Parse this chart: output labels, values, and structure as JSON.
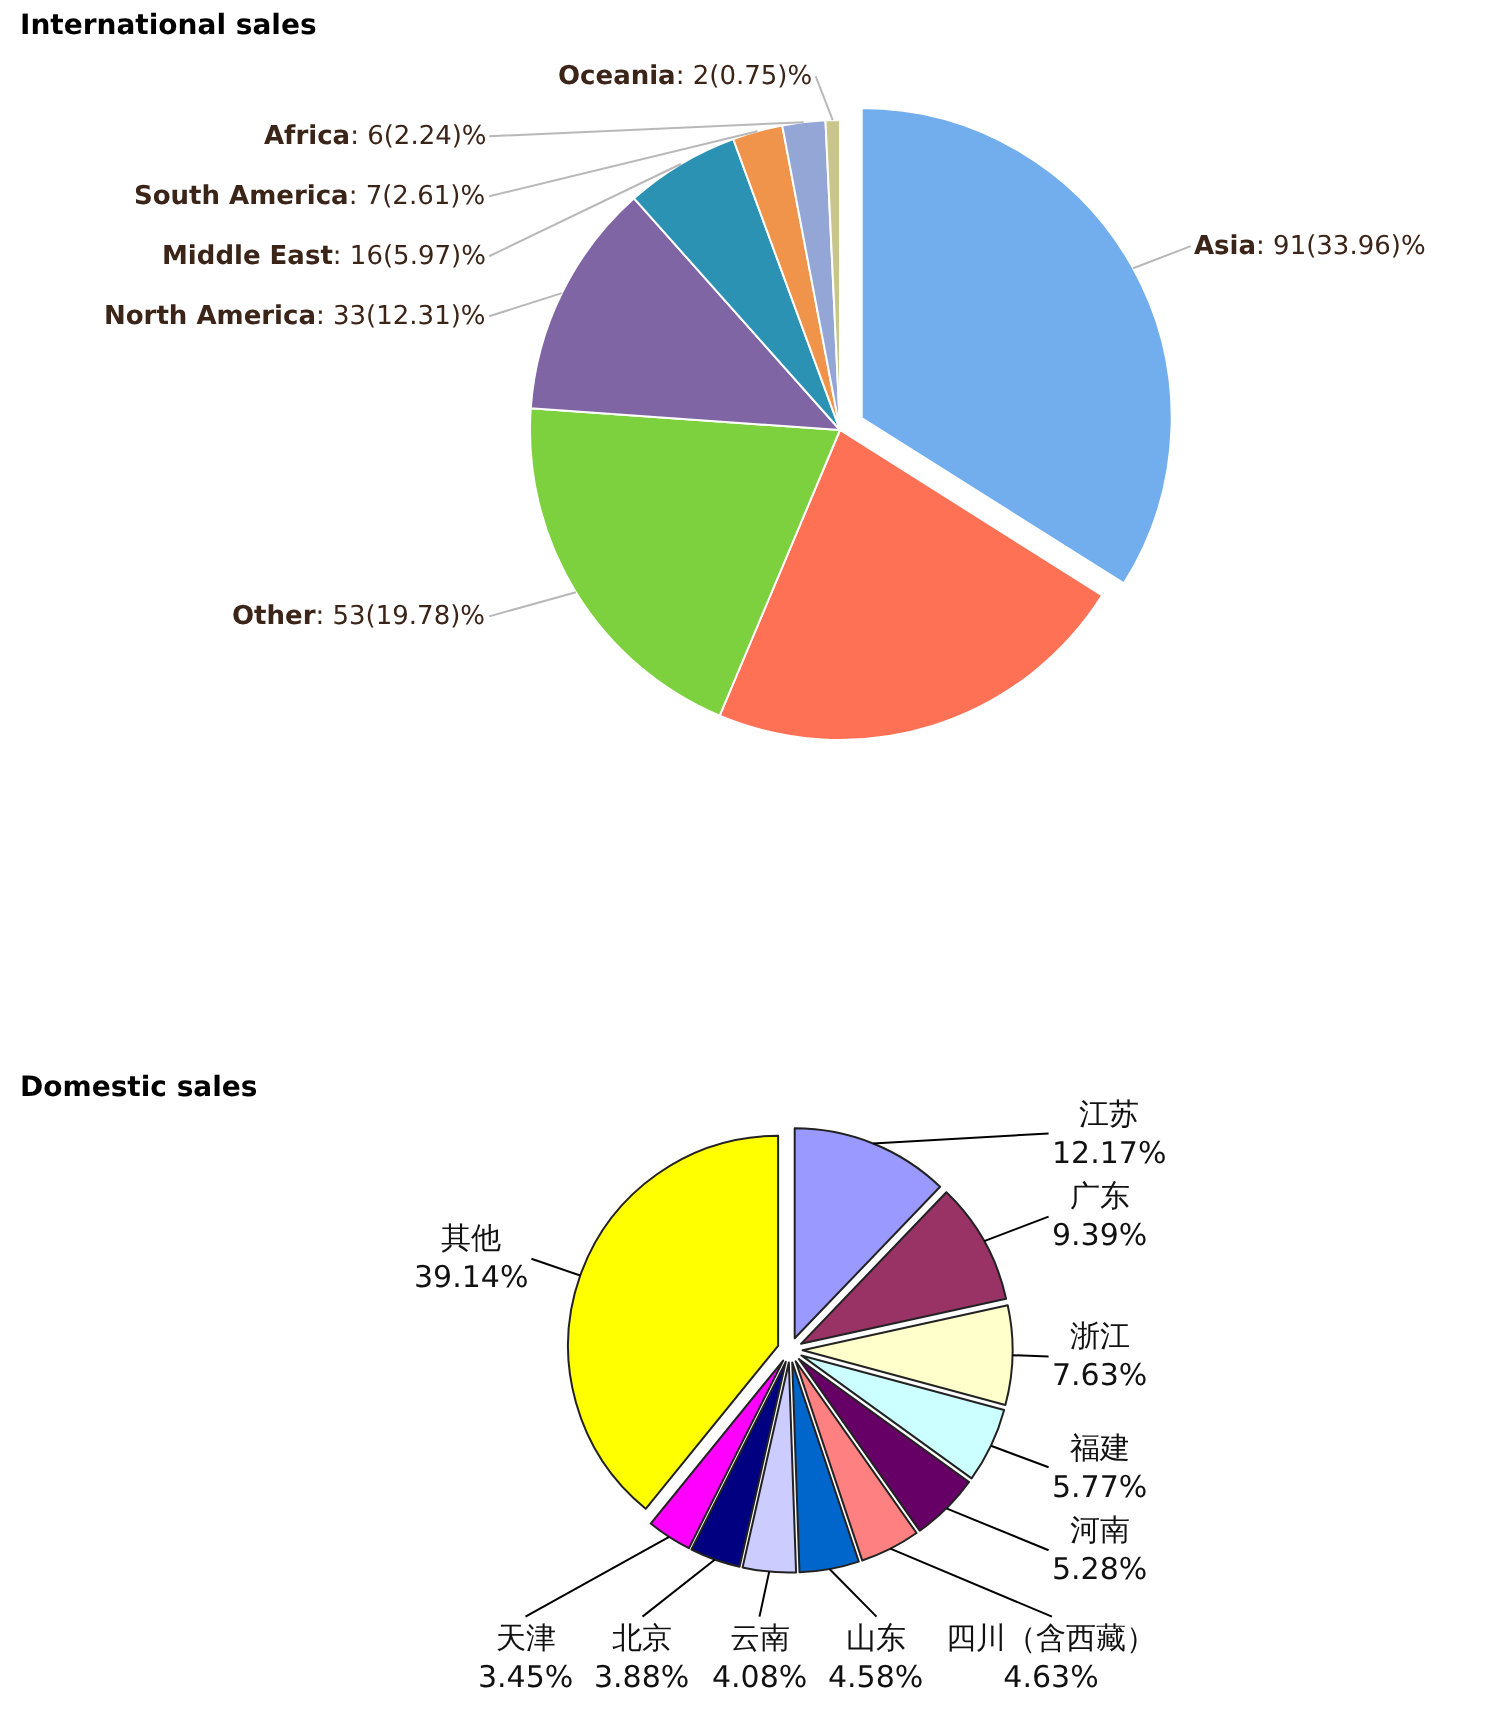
{
  "chart_data": [
    {
      "type": "pie",
      "title": "International sales",
      "categories": [
        "Asia",
        null,
        "Other",
        "North America",
        "Middle East",
        "South America",
        "Africa",
        "Oceania"
      ],
      "values": [
        91,
        60,
        53,
        33,
        16,
        7,
        6,
        2
      ],
      "value_labels": [
        ": 91(33.96)%",
        null,
        ": 53(19.78)%",
        ": 33(12.31)%",
        ": 16(5.97)%",
        ": 7(2.61)%",
        ": 6(2.24)%",
        ": 2(0.75)%"
      ],
      "colors": [
        "#72aeee",
        "#fe7154",
        "#7dd03e",
        "#7f65a3",
        "#2c92b3",
        "#ef944a",
        "#93a6d6",
        "#c8c68a"
      ]
    },
    {
      "type": "pie",
      "title": "Domestic sales",
      "categories": [
        "江苏",
        "广东",
        "浙江",
        "福建",
        "河南",
        "四川（含西藏）",
        "山东",
        "云南",
        "北京",
        "天津",
        "其他"
      ],
      "values": [
        12.17,
        9.39,
        7.63,
        5.77,
        5.28,
        4.63,
        4.58,
        4.08,
        3.88,
        3.45,
        39.14
      ],
      "value_labels": [
        "12.17%",
        "9.39%",
        "7.63%",
        "5.77%",
        "5.28%",
        "4.63%",
        "4.58%",
        "4.08%",
        "3.88%",
        "3.45%",
        "39.14%"
      ],
      "colors": [
        "#9999ff",
        "#993366",
        "#ffffcc",
        "#ccffff",
        "#660066",
        "#ff8080",
        "#0066cc",
        "#ccccff",
        "#000080",
        "#ff00ff",
        "#ffff00"
      ]
    }
  ]
}
